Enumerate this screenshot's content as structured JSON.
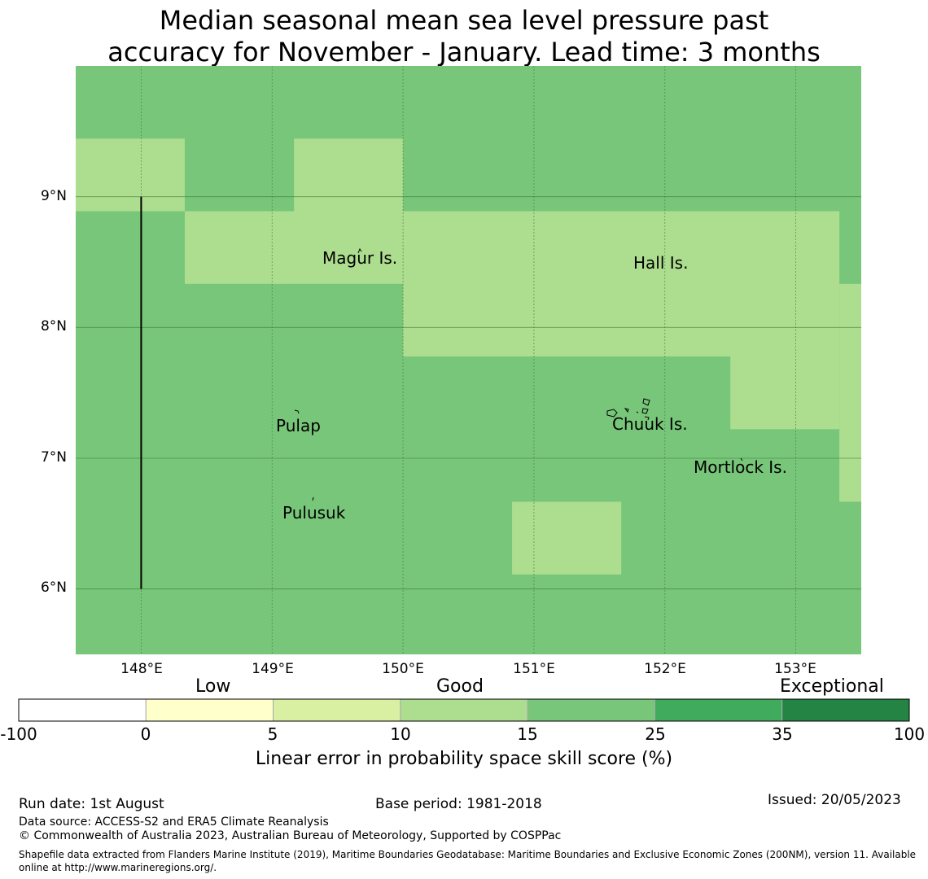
{
  "title": {
    "line1": "Median seasonal mean sea level pressure past",
    "line2": "accuracy for November - January. Lead time: 3 months"
  },
  "map": {
    "lon_range": [
      147.5,
      153.5
    ],
    "lat_range": [
      5.5,
      10.0
    ],
    "lat_ticks": [
      {
        "value": 9,
        "label": "9°N"
      },
      {
        "value": 8,
        "label": "8°N"
      },
      {
        "value": 7,
        "label": "7°N"
      },
      {
        "value": 6,
        "label": "6°N"
      }
    ],
    "lon_ticks": [
      {
        "value": 148,
        "label": "148°E"
      },
      {
        "value": 149,
        "label": "149°E"
      },
      {
        "value": 150,
        "label": "150°E"
      },
      {
        "value": 151,
        "label": "151°E"
      },
      {
        "value": 152,
        "label": "152°E"
      },
      {
        "value": 153,
        "label": "153°E"
      }
    ],
    "background_color": "#78c679",
    "patch_color": "#addd8e",
    "patches_lonlat": [
      {
        "lon": [
          147.5,
          148.333
        ],
        "lat": [
          8.889,
          9.444
        ]
      },
      {
        "lon": [
          149.167,
          150.0
        ],
        "lat": [
          8.889,
          9.444
        ]
      },
      {
        "lon": [
          148.333,
          150.0
        ],
        "lat": [
          8.333,
          8.889
        ]
      },
      {
        "lon": [
          150.0,
          153.333
        ],
        "lat": [
          7.778,
          8.889
        ]
      },
      {
        "lon": [
          153.333,
          153.5
        ],
        "lat": [
          7.778,
          8.333
        ]
      },
      {
        "lon": [
          152.5,
          153.333
        ],
        "lat": [
          7.222,
          7.778
        ]
      },
      {
        "lon": [
          153.333,
          153.5
        ],
        "lat": [
          6.667,
          7.778
        ]
      },
      {
        "lon": [
          150.833,
          151.667
        ],
        "lat": [
          6.111,
          6.667
        ]
      }
    ],
    "boundary_line": {
      "lon": 148.0,
      "lat": [
        6.0,
        9.0
      ]
    },
    "places": [
      {
        "name": "Magur Is.",
        "lon": 149.67,
        "lat": 8.55
      },
      {
        "name": "Hall Is.",
        "lon": 151.98,
        "lat": 8.51
      },
      {
        "name": "Pulap",
        "lon": 149.21,
        "lat": 7.23
      },
      {
        "name": "Chuuk Is.",
        "lon": 151.86,
        "lat": 7.25
      },
      {
        "name": "Mortlock Is.",
        "lon": 152.59,
        "lat": 6.92
      },
      {
        "name": "Pulusuk",
        "lon": 149.33,
        "lat": 6.57
      }
    ]
  },
  "colorbar": {
    "category_labels": {
      "low": "Low",
      "good": "Good",
      "exceptional": "Exceptional"
    },
    "bins": [
      {
        "from": -100,
        "to": 0,
        "color": "#ffffff"
      },
      {
        "from": 0,
        "to": 5,
        "color": "#ffffcc"
      },
      {
        "from": 5,
        "to": 10,
        "color": "#d9f0a3"
      },
      {
        "from": 10,
        "to": 15,
        "color": "#addd8e"
      },
      {
        "from": 15,
        "to": 25,
        "color": "#78c679"
      },
      {
        "from": 25,
        "to": 35,
        "color": "#41ab5d"
      },
      {
        "from": 35,
        "to": 100,
        "color": "#238443"
      }
    ],
    "tick_labels": [
      "-100",
      "0",
      "5",
      "10",
      "15",
      "25",
      "35",
      "100"
    ],
    "label": "Linear error in probability space skill score (%)"
  },
  "footer": {
    "run_date": "Run date: 1st August",
    "base_period": "Base period: 1981-2018",
    "issued": "Issued: 20/05/2023",
    "data_source": "Data source: ACCESS-S2 and ERA5 Climate Reanalysis",
    "copyright": "© Commonwealth of Australia 2023, Australian Bureau of Meteorology, Supported by COSPPac",
    "shapefile_line1": "Shapefile data extracted from Flanders Marine Institute (2019), Maritime Boundaries Geodatabase: Maritime Boundaries and Exclusive Economic Zones (200NM), version 11. Available",
    "shapefile_line2": "online at http://www.marineregions.org/."
  }
}
